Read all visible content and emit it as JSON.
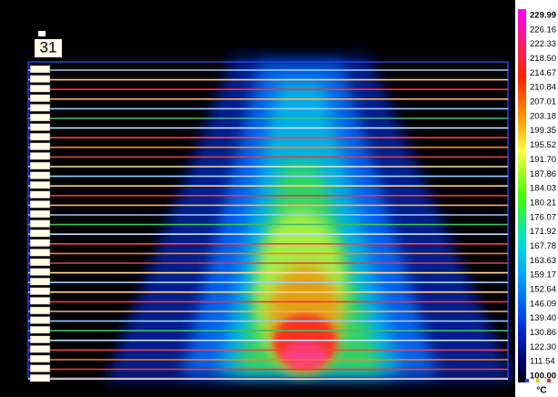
{
  "frame_label": "31",
  "color_scale": {
    "labels": [
      "229.99",
      "226.16",
      "222.33",
      "218.50",
      "214.67",
      "210.84",
      "207.01",
      "203.18",
      "199.35",
      "195.52",
      "191.70",
      "187.86",
      "184.03",
      "180.21",
      "176.07",
      "171.92",
      "167.78",
      "163.63",
      "159.17",
      "152.64",
      "146.09",
      "139.40",
      "130.86",
      "122.30",
      "111.54",
      "100.00"
    ],
    "unit": "°C"
  }
}
